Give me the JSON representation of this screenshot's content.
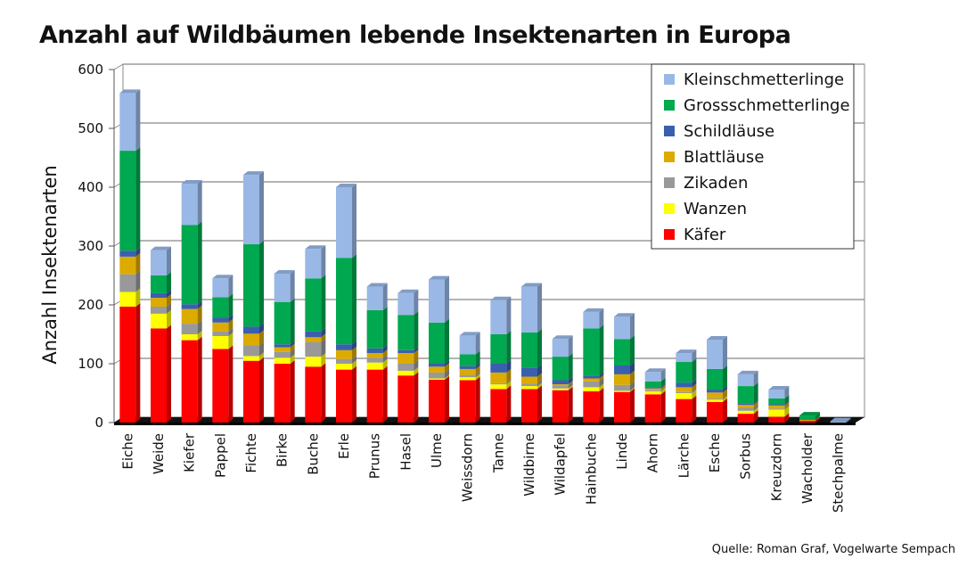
{
  "chart_data": {
    "type": "bar",
    "stacked": true,
    "title": "Anzahl auf Wildbäumen lebende Insektenarten in Europa",
    "ylabel": "Anzahl Insektenarten",
    "xlabel": "",
    "ylim": [
      0,
      600
    ],
    "yticks": [
      "0",
      "100",
      "200",
      "300",
      "400",
      "500",
      "600"
    ],
    "grid": true,
    "legend_position": "top-right",
    "source": "Quelle: Roman Graf, Vogelwarte Sempach",
    "categories": [
      "Eiche",
      "Weide",
      "Kiefer",
      "Pappel",
      "Fichte",
      "Birke",
      "Buche",
      "Erle",
      "Prunus",
      "Hasel",
      "Ulme",
      "Weissdorn",
      "Tanne",
      "Wildbirne",
      "Wildapfel",
      "Hainbuche",
      "Linde",
      "Ahorn",
      "Lärche",
      "Esche",
      "Sorbus",
      "Kreuzdorn",
      "Wacholder",
      "Stechpalme"
    ],
    "series": [
      {
        "name": "Käfer",
        "color": "#ff0000",
        "values": [
          197,
          160,
          140,
          125,
          105,
          100,
          95,
          90,
          90,
          80,
          73,
          72,
          57,
          57,
          55,
          53,
          52,
          48,
          40,
          35,
          15,
          10,
          3,
          0
        ]
      },
      {
        "name": "Wanzen",
        "color": "#ffff00",
        "values": [
          25,
          25,
          10,
          22,
          8,
          10,
          17,
          10,
          12,
          8,
          2,
          5,
          8,
          5,
          3,
          7,
          2,
          5,
          10,
          4,
          5,
          12,
          0,
          0
        ]
      },
      {
        "name": "Zikaden",
        "color": "#999999",
        "values": [
          30,
          12,
          18,
          8,
          18,
          10,
          25,
          8,
          8,
          12,
          10,
          4,
          2,
          4,
          5,
          10,
          10,
          2,
          2,
          2,
          5,
          2,
          0,
          0
        ]
      },
      {
        "name": "Blattläuse",
        "color": "#ddaa00",
        "values": [
          30,
          15,
          25,
          15,
          20,
          8,
          8,
          15,
          8,
          18,
          10,
          10,
          18,
          12,
          2,
          5,
          18,
          3,
          8,
          10,
          5,
          5,
          2,
          0
        ]
      },
      {
        "name": "Schildläuse",
        "color": "#3a5fae",
        "values": [
          10,
          8,
          8,
          8,
          12,
          5,
          10,
          10,
          8,
          5,
          5,
          5,
          15,
          15,
          7,
          5,
          15,
          2,
          8,
          5,
          2,
          2,
          0,
          0
        ]
      },
      {
        "name": "Grossschmetterlinge",
        "color": "#00a84f",
        "values": [
          170,
          30,
          135,
          35,
          140,
          72,
          90,
          147,
          65,
          60,
          70,
          20,
          50,
          60,
          40,
          80,
          45,
          10,
          35,
          35,
          30,
          10,
          7,
          0
        ]
      },
      {
        "name": "Kleinschmetterlinge",
        "color": "#99b8e6",
        "values": [
          98,
          43,
          70,
          32,
          118,
          48,
          50,
          120,
          40,
          37,
          73,
          32,
          58,
          78,
          30,
          28,
          38,
          16,
          15,
          50,
          20,
          15,
          0,
          2
        ]
      }
    ]
  }
}
